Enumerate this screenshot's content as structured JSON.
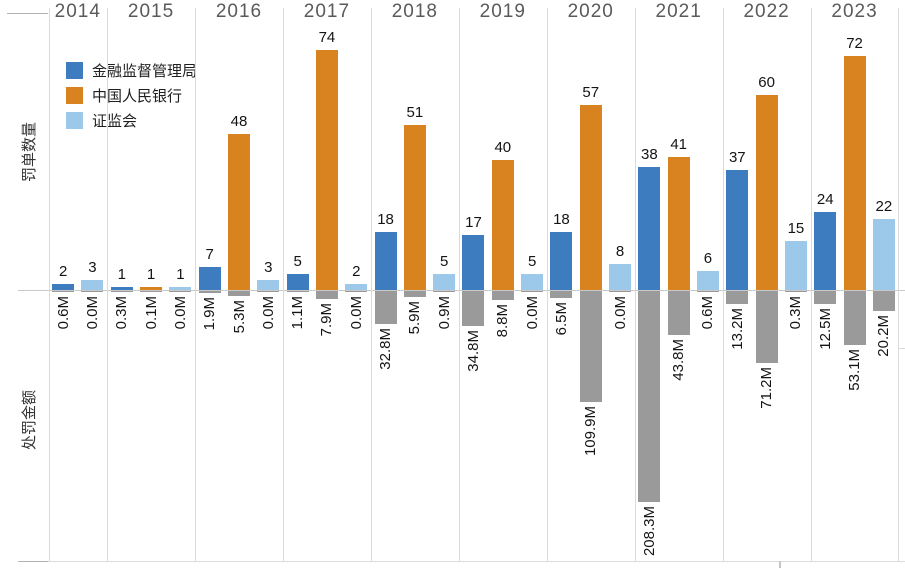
{
  "chart_data": {
    "type": "bar",
    "title": "",
    "axes": {
      "left_top_label": "罚单数量",
      "left_bottom_label": "处罚金额",
      "amount_unit": "M"
    },
    "legend": [
      {
        "label": "金融监督管理局",
        "color": "#3d7cbf"
      },
      {
        "label": "中国人民银行",
        "color": "#d8831f"
      },
      {
        "label": "证监会",
        "color": "#9cc9e9"
      }
    ],
    "amount_bar_color": "#9a9a9a",
    "categories": [
      "2014",
      "2015",
      "2016",
      "2017",
      "2018",
      "2019",
      "2020",
      "2021",
      "2022",
      "2023"
    ],
    "years": [
      {
        "year": "2014",
        "bars": [
          {
            "series": 0,
            "count": 2,
            "amount_label": "0.6M",
            "amount_m": 0.6
          },
          {
            "series": 2,
            "count": 3,
            "amount_label": "0.0M",
            "amount_m": 0.0
          }
        ]
      },
      {
        "year": "2015",
        "bars": [
          {
            "series": 0,
            "count": 1,
            "amount_label": "0.3M",
            "amount_m": 0.3
          },
          {
            "series": 1,
            "count": 1,
            "amount_label": "0.1M",
            "amount_m": 0.1
          },
          {
            "series": 2,
            "count": 1,
            "amount_label": "0.0M",
            "amount_m": 0.0
          }
        ]
      },
      {
        "year": "2016",
        "bars": [
          {
            "series": 0,
            "count": 7,
            "amount_label": "1.9M",
            "amount_m": 1.9
          },
          {
            "series": 1,
            "count": 48,
            "amount_label": "5.3M",
            "amount_m": 5.3
          },
          {
            "series": 2,
            "count": 3,
            "amount_label": "0.0M",
            "amount_m": 0.0
          }
        ]
      },
      {
        "year": "2017",
        "bars": [
          {
            "series": 0,
            "count": 5,
            "amount_label": "1.1M",
            "amount_m": 1.1
          },
          {
            "series": 1,
            "count": 74,
            "amount_label": "7.9M",
            "amount_m": 7.9
          },
          {
            "series": 2,
            "count": 2,
            "amount_label": "0.0M",
            "amount_m": 0.0
          }
        ]
      },
      {
        "year": "2018",
        "bars": [
          {
            "series": 0,
            "count": 18,
            "amount_label": "32.8M",
            "amount_m": 32.8
          },
          {
            "series": 1,
            "count": 51,
            "amount_label": "5.9M",
            "amount_m": 5.9
          },
          {
            "series": 2,
            "count": 5,
            "amount_label": "0.9M",
            "amount_m": 0.9
          }
        ]
      },
      {
        "year": "2019",
        "bars": [
          {
            "series": 0,
            "count": 17,
            "amount_label": "34.8M",
            "amount_m": 34.8
          },
          {
            "series": 1,
            "count": 40,
            "amount_label": "8.8M",
            "amount_m": 8.8
          },
          {
            "series": 2,
            "count": 5,
            "amount_label": "0.0M",
            "amount_m": 0.0
          }
        ]
      },
      {
        "year": "2020",
        "bars": [
          {
            "series": 0,
            "count": 18,
            "amount_label": "6.5M",
            "amount_m": 6.5
          },
          {
            "series": 1,
            "count": 57,
            "amount_label": "109.9M",
            "amount_m": 109.9
          },
          {
            "series": 2,
            "count": 8,
            "amount_label": "0.0M",
            "amount_m": 0.0
          }
        ]
      },
      {
        "year": "2021",
        "bars": [
          {
            "series": 0,
            "count": 38,
            "amount_label": "208.3M",
            "amount_m": 208.3
          },
          {
            "series": 1,
            "count": 41,
            "amount_label": "43.8M",
            "amount_m": 43.8
          },
          {
            "series": 2,
            "count": 6,
            "amount_label": "0.6M",
            "amount_m": 0.6
          }
        ]
      },
      {
        "year": "2022",
        "bars": [
          {
            "series": 0,
            "count": 37,
            "amount_label": "13.2M",
            "amount_m": 13.2
          },
          {
            "series": 1,
            "count": 60,
            "amount_label": "71.2M",
            "amount_m": 71.2
          },
          {
            "series": 2,
            "count": 15,
            "amount_label": "0.3M",
            "amount_m": 0.3
          }
        ]
      },
      {
        "year": "2023",
        "bars": [
          {
            "series": 0,
            "count": 24,
            "amount_label": "12.5M",
            "amount_m": 12.5
          },
          {
            "series": 1,
            "count": 72,
            "amount_label": "53.1M",
            "amount_m": 53.1
          },
          {
            "series": 2,
            "count": 22,
            "amount_label": "20.2M",
            "amount_m": 20.2
          }
        ]
      }
    ],
    "layout_hints": {
      "count_axis_implied_max": 74,
      "amount_axis_implied_max_m": 208.3,
      "legend_position": "top-left",
      "grid": "vertical-year-separators"
    }
  }
}
